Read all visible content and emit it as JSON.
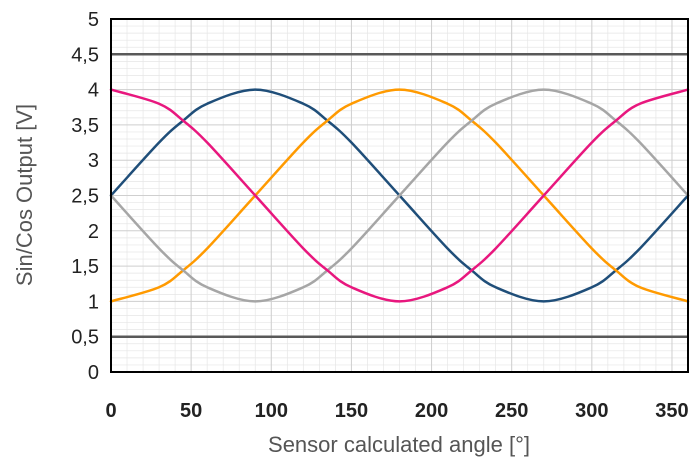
{
  "chart_data": {
    "type": "line",
    "xlabel": "Sensor calculated angle [°]",
    "ylabel": "Sin/Cos Output [V]",
    "xlim": [
      0,
      360
    ],
    "ylim": [
      0,
      5
    ],
    "x_ticks": [
      0,
      50,
      100,
      150,
      200,
      250,
      300,
      350
    ],
    "x_tick_labels": [
      "0",
      "50",
      "100",
      "150",
      "200",
      "250",
      "300",
      "350"
    ],
    "y_ticks": [
      0,
      0.5,
      1,
      1.5,
      2,
      2.5,
      3,
      3.5,
      4,
      4.5,
      5
    ],
    "y_tick_labels": [
      "0",
      "0,5",
      "1",
      "1,5",
      "2",
      "2,5",
      "3",
      "3,5",
      "4",
      "4,5",
      "5"
    ],
    "grid": true,
    "minor_grid_x_step": 10,
    "minor_grid_y_step": 0.1,
    "x": [
      0,
      30,
      45,
      60,
      90,
      120,
      135,
      150,
      180,
      210,
      225,
      240,
      270,
      300,
      315,
      330,
      360
    ],
    "series": [
      {
        "color": "#1f4e79",
        "values": [
          2.5,
          3.25,
          3.56,
          3.8,
          4.0,
          3.8,
          3.56,
          3.25,
          2.5,
          1.75,
          1.44,
          1.2,
          1.0,
          1.2,
          1.44,
          1.75,
          2.5
        ]
      },
      {
        "color": "#ff9a00",
        "values": [
          1.0,
          1.2,
          1.44,
          1.75,
          2.5,
          3.25,
          3.56,
          3.8,
          4.0,
          3.8,
          3.56,
          3.25,
          2.5,
          1.75,
          1.44,
          1.2,
          1.0
        ]
      },
      {
        "color": "#a6a6a6",
        "values": [
          2.5,
          1.75,
          1.44,
          1.2,
          1.0,
          1.2,
          1.44,
          1.75,
          2.5,
          3.25,
          3.56,
          3.8,
          4.0,
          3.8,
          3.56,
          3.25,
          2.5
        ]
      },
      {
        "color": "#e8177e",
        "values": [
          4.0,
          3.8,
          3.56,
          3.25,
          2.5,
          1.75,
          1.44,
          1.2,
          1.0,
          1.2,
          1.44,
          1.75,
          2.5,
          3.25,
          3.56,
          3.8,
          4.0
        ]
      }
    ],
    "reference_lines": [
      {
        "y": 4.5,
        "color": "#595959"
      },
      {
        "y": 0.5,
        "color": "#595959"
      }
    ]
  }
}
